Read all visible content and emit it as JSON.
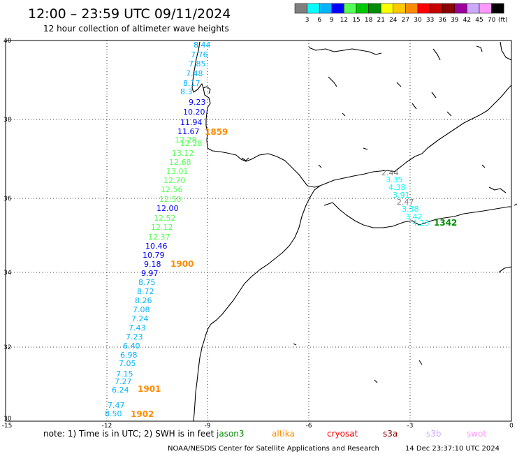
{
  "header": {
    "title": "12:00 – 23:59 UTC 09/11/2024",
    "subtitle": "12 hour collection of altimeter wave heights"
  },
  "colorbar": {
    "colors": [
      "#7f7f7f",
      "#00ffff",
      "#00b4ff",
      "#0000ff",
      "#55ff55",
      "#00c800",
      "#008c00",
      "#ffff00",
      "#ffc800",
      "#ff8c00",
      "#ff0000",
      "#c80000",
      "#8c0000",
      "#9b009b",
      "#ccaaff",
      "#ff99ff",
      "#000000"
    ],
    "labels": [
      "3",
      "6",
      "9",
      "12",
      "15",
      "18",
      "21",
      "24",
      "27",
      "30",
      "33",
      "36",
      "39",
      "42",
      "45",
      "70"
    ],
    "unit": "(ft)"
  },
  "axes": {
    "lat_labels": [
      "40",
      "38",
      "36",
      "34",
      "32",
      "30"
    ],
    "lon_labels": [
      "-15",
      "-12",
      "-9",
      "-6",
      "-3",
      "0"
    ]
  },
  "tracks": {
    "atlantic_upper": {
      "values": [
        "8.44",
        "7.76",
        "7.85",
        "7.48",
        "8.17",
        "8.3",
        "9.23",
        "10.20",
        "11.94",
        "11.67",
        "12.28",
        "12.28",
        "13.12",
        "12.68",
        "13.01",
        "12.70",
        "12.56",
        "12.50",
        "12.00",
        "12.52",
        "12.12",
        "12.37",
        "10.46",
        "10.79",
        "9.18",
        "9.97"
      ],
      "colors": [
        "#00b4ff",
        "#00b4ff",
        "#00b4ff",
        "#00b4ff",
        "#00b4ff",
        "#00b4ff",
        "#0000ff",
        "#0000ff",
        "#0000ff",
        "#0000ff",
        "#55ff55",
        "#55ff55",
        "#55ff55",
        "#55ff55",
        "#55ff55",
        "#55ff55",
        "#55ff55",
        "#55ff55",
        "#0000ff",
        "#55ff55",
        "#55ff55",
        "#55ff55",
        "#0000ff",
        "#0000ff",
        "#0000ff",
        "#0000ff"
      ]
    },
    "atlantic_lower": {
      "values": [
        "8.75",
        "8.72",
        "8.26",
        "7.08",
        "7.24",
        "7.43",
        "7.23",
        "6.40",
        "6.98",
        "7.05",
        "7.15",
        "7.27",
        "6.24",
        "7.47",
        "8.50"
      ],
      "colors": [
        "#00b4ff",
        "#00b4ff",
        "#00b4ff",
        "#00b4ff",
        "#00b4ff",
        "#00b4ff",
        "#00b4ff",
        "#00b4ff",
        "#00b4ff",
        "#00b4ff",
        "#00b4ff",
        "#00b4ff",
        "#00b4ff",
        "#00b4ff",
        "#00b4ff"
      ]
    },
    "alboran": {
      "values": [
        "2.44",
        "3.35",
        "4.38",
        "3.91",
        "2.47",
        "3.38",
        "3.42",
        "4.23"
      ],
      "colors": [
        "#7f7f7f",
        "#00ffff",
        "#00ffff",
        "#00ffff",
        "#7f7f7f",
        "#00ffff",
        "#00ffff",
        "#00ffff"
      ]
    },
    "time_labels": [
      {
        "text": "1859",
        "color": "#ff8c00"
      },
      {
        "text": "1900",
        "color": "#ff8c00"
      },
      {
        "text": "1901",
        "color": "#ff8c00"
      },
      {
        "text": "1902",
        "color": "#ff8c00"
      },
      {
        "text": "1342",
        "color": "#008c00"
      }
    ]
  },
  "footer": {
    "note": "note: 1) Time is in UTC; 2) SWH is in feet",
    "satellites": [
      {
        "name": "jason3",
        "color": "#008c00"
      },
      {
        "name": "altika",
        "color": "#ff8c00"
      },
      {
        "name": "cryosat",
        "color": "#ff0000"
      },
      {
        "name": "s3a",
        "color": "#8c0000"
      },
      {
        "name": "s3b",
        "color": "#ccaaff"
      },
      {
        "name": "swot",
        "color": "#ff99ff"
      }
    ],
    "credit": "NOAA/NESDIS Center for Satellite Applications and Research",
    "timestamp": "14 Dec 23:37:10 UTC 2024"
  }
}
